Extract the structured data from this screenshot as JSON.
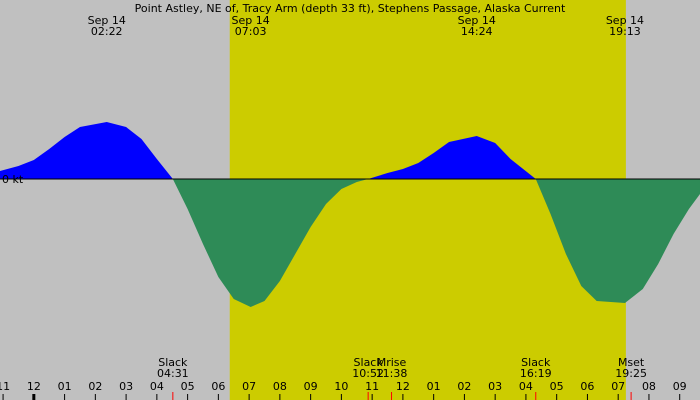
{
  "chart_data": {
    "type": "area",
    "title": "Point Astley, NE of, Tracy Arm (depth 33 ft), Stephens Passage, Alaska Current",
    "x": [
      -1.1,
      -0.5,
      0,
      0.5,
      1,
      1.5,
      2.37,
      3,
      3.5,
      4,
      4.52,
      5,
      5.5,
      6,
      6.5,
      7.05,
      7.5,
      8,
      8.5,
      9,
      9.5,
      10,
      10.5,
      10.87,
      11.5,
      12,
      12.5,
      13,
      13.5,
      14.4,
      15,
      15.5,
      16.32,
      16.8,
      17.3,
      17.8,
      18.3,
      19.22,
      19.8,
      20.3,
      20.8,
      21.3,
      21.66
    ],
    "values": [
      0.08,
      0.13,
      0.19,
      0.3,
      0.42,
      0.52,
      0.57,
      0.52,
      0.4,
      0.2,
      0,
      -0.3,
      -0.65,
      -0.98,
      -1.2,
      -1.28,
      -1.22,
      -1.02,
      -0.75,
      -0.48,
      -0.25,
      -0.1,
      -0.03,
      0,
      0.06,
      0.1,
      0.16,
      0.26,
      0.37,
      0.43,
      0.36,
      0.2,
      0,
      -0.35,
      -0.75,
      -1.07,
      -1.22,
      -1.24,
      -1.1,
      -0.85,
      -0.55,
      -0.3,
      -0.15
    ],
    "flood_color": "#0000ff",
    "ebb_color": "#2e8b57",
    "background": "#c0c0c0",
    "daylight_color": "#cccc00",
    "daylight": [
      6.37,
      19.25
    ],
    "xlim": [
      -1.1,
      21.66
    ],
    "ylim": [
      -2.21,
      1.79
    ],
    "yticks": [
      {
        "value": 0,
        "label": "0 kt"
      }
    ],
    "xticks": [
      {
        "value": -1,
        "label": "11"
      },
      {
        "value": 0,
        "label": "12"
      },
      {
        "value": 1,
        "label": "01"
      },
      {
        "value": 2,
        "label": "02"
      },
      {
        "value": 3,
        "label": "03"
      },
      {
        "value": 4,
        "label": "04"
      },
      {
        "value": 5,
        "label": "05"
      },
      {
        "value": 6,
        "label": "06"
      },
      {
        "value": 7,
        "label": "07"
      },
      {
        "value": 8,
        "label": "08"
      },
      {
        "value": 9,
        "label": "09"
      },
      {
        "value": 10,
        "label": "10"
      },
      {
        "value": 11,
        "label": "11"
      },
      {
        "value": 12,
        "label": "12"
      },
      {
        "value": 13,
        "label": "01"
      },
      {
        "value": 14,
        "label": "02"
      },
      {
        "value": 15,
        "label": "03"
      },
      {
        "value": 16,
        "label": "04"
      },
      {
        "value": 17,
        "label": "05"
      },
      {
        "value": 18,
        "label": "06"
      },
      {
        "value": 19,
        "label": "07"
      },
      {
        "value": 20,
        "label": "08"
      },
      {
        "value": 21,
        "label": "09"
      }
    ],
    "extremes": [
      {
        "date": "Sep 14",
        "time": "02:22",
        "x": 2.37
      },
      {
        "date": "Sep 14",
        "time": "07:03",
        "x": 7.05
      },
      {
        "date": "Sep 14",
        "time": "14:24",
        "x": 14.4
      },
      {
        "date": "Sep 14",
        "time": "19:13",
        "x": 19.22
      }
    ],
    "events": [
      {
        "label": "Slack",
        "time": "04:31",
        "x": 4.52
      },
      {
        "label": "Slack",
        "time": "10:52",
        "x": 10.87
      },
      {
        "label": "Mrise",
        "time": "11:38",
        "x": 11.63
      },
      {
        "label": "Slack",
        "time": "16:19",
        "x": 16.32
      },
      {
        "label": "Mset",
        "time": "19:25",
        "x": 19.42
      }
    ]
  }
}
